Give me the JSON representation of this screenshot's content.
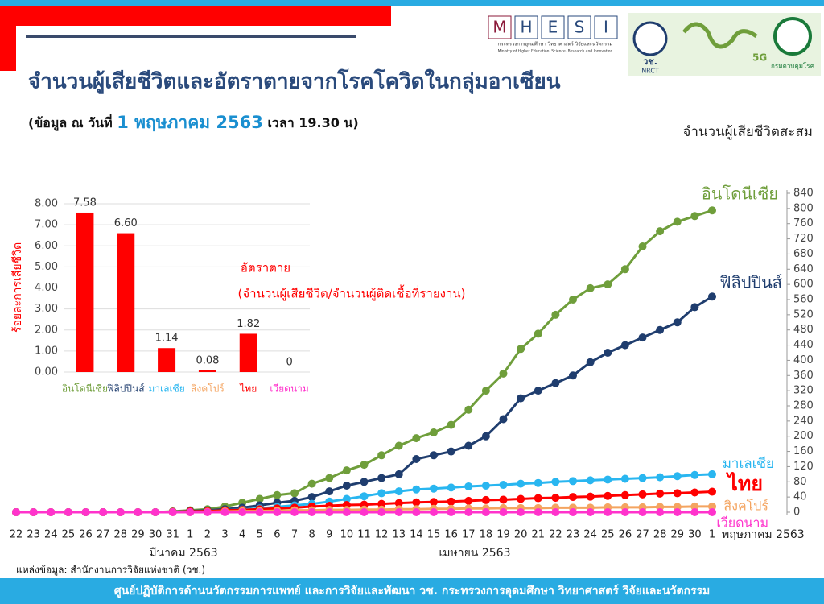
{
  "header": {
    "title": "จำนวนผู้เสียชีวิตและอัตราตายจากโรคโควิดในกลุ่มอาเซียน",
    "subtitle_prefix": "(ข้อมูล ณ วันที่",
    "subtitle_date": "1 พฤษภาคม 2563",
    "subtitle_suffix": "เวลา 19.30 น)"
  },
  "logos": {
    "mhesi_letters": [
      "M",
      "H",
      "E",
      "S",
      "I"
    ],
    "mhesi_th": "กระทรวงการอุดมศึกษา วิทยาศาสตร์ วิจัยและนวัตกรรม",
    "mhesi_en": "Ministry of Higher Education, Science, Research and Innovation",
    "nrct_th": "วช.",
    "nrct_en": "NRCT",
    "fiveg": "5G",
    "ddc": "กรมควบคุมโรค"
  },
  "chart_data": [
    {
      "type": "line",
      "y_label": "จำนวนผู้เสียชีวิตสะสม",
      "y_axis_position": "right",
      "categories": [
        "22",
        "23",
        "24",
        "25",
        "26",
        "27",
        "28",
        "29",
        "30",
        "31",
        "1",
        "2",
        "3",
        "4",
        "5",
        "6",
        "7",
        "8",
        "9",
        "10",
        "11",
        "12",
        "13",
        "14",
        "15",
        "16",
        "17",
        "18",
        "19",
        "20",
        "21",
        "22",
        "23",
        "24",
        "25",
        "26",
        "27",
        "28",
        "29",
        "30",
        "1"
      ],
      "x_group_labels": [
        "มีนาคม 2563",
        "เมษายน 2563",
        "พฤษภาคม 2563"
      ],
      "ylim": [
        0,
        840
      ],
      "yticks": [
        0,
        40,
        80,
        120,
        160,
        200,
        240,
        280,
        320,
        360,
        400,
        440,
        480,
        520,
        560,
        600,
        640,
        680,
        720,
        760,
        800,
        840
      ],
      "series": [
        {
          "name": "อินโดนีเซีย",
          "color": "#6f9e3b",
          "values": [
            0,
            0,
            0,
            0,
            0,
            0,
            0,
            0,
            0,
            2,
            5,
            8,
            15,
            25,
            35,
            45,
            50,
            75,
            90,
            110,
            125,
            150,
            175,
            195,
            210,
            230,
            270,
            320,
            365,
            430,
            470,
            520,
            560,
            590,
            600,
            640,
            700,
            740,
            765,
            780,
            795
          ]
        },
        {
          "name": "ฟิลิปปินส์",
          "color": "#1f3d6e",
          "values": [
            0,
            0,
            0,
            0,
            0,
            0,
            0,
            0,
            0,
            1,
            3,
            5,
            8,
            12,
            18,
            25,
            30,
            40,
            55,
            70,
            80,
            90,
            100,
            140,
            150,
            160,
            175,
            200,
            245,
            300,
            320,
            340,
            360,
            395,
            420,
            440,
            460,
            480,
            500,
            540,
            568
          ]
        },
        {
          "name": "มาเลเซีย",
          "color": "#29b6f0",
          "values": [
            0,
            0,
            0,
            0,
            0,
            0,
            0,
            0,
            0,
            1,
            2,
            3,
            5,
            7,
            10,
            14,
            18,
            22,
            28,
            35,
            42,
            50,
            55,
            60,
            62,
            65,
            68,
            70,
            72,
            75,
            77,
            80,
            82,
            84,
            86,
            88,
            90,
            92,
            95,
            98,
            100
          ]
        },
        {
          "name": "ไทย",
          "color": "#ff0000",
          "values": [
            0,
            0,
            0,
            0,
            0,
            0,
            0,
            0,
            0,
            1,
            2,
            3,
            5,
            6,
            8,
            10,
            12,
            15,
            17,
            19,
            20,
            22,
            24,
            26,
            27,
            28,
            30,
            32,
            33,
            35,
            37,
            38,
            40,
            41,
            43,
            45,
            47,
            49,
            50,
            52,
            54
          ]
        },
        {
          "name": "สิงคโปร์",
          "color": "#f4a460",
          "values": [
            0,
            0,
            0,
            0,
            0,
            0,
            0,
            0,
            0,
            0,
            0,
            1,
            2,
            3,
            3,
            4,
            5,
            5,
            6,
            6,
            7,
            7,
            8,
            8,
            9,
            9,
            10,
            10,
            11,
            11,
            11,
            12,
            12,
            12,
            13,
            13,
            13,
            14,
            14,
            15,
            15
          ]
        },
        {
          "name": "เวียดนาม",
          "color": "#ff33cc",
          "values": [
            0,
            0,
            0,
            0,
            0,
            0,
            0,
            0,
            0,
            0,
            0,
            0,
            0,
            0,
            0,
            0,
            0,
            0,
            0,
            0,
            0,
            0,
            0,
            0,
            0,
            0,
            0,
            0,
            0,
            0,
            0,
            0,
            0,
            0,
            0,
            0,
            0,
            0,
            0,
            0,
            0
          ]
        }
      ]
    },
    {
      "type": "bar",
      "y_label": "ร้อยละการเสียชีวิต",
      "annotations": [
        "อัตราตาย",
        "(จำนวนผู้เสียชีวิต/จำนวนผู้ติดเชื้อที่รายงาน)"
      ],
      "categories": [
        "อินโดนีเซีย",
        "ฟิลิปปินส์",
        "มาเลเซีย",
        "สิงคโปร์",
        "ไทย",
        "เวียดนาม"
      ],
      "category_colors": [
        "#6f9e3b",
        "#1f3d6e",
        "#29b6f0",
        "#f4a460",
        "#ff0000",
        "#ff33cc"
      ],
      "values": [
        7.58,
        6.6,
        1.14,
        0.08,
        1.82,
        0
      ],
      "value_labels": [
        "7.58",
        "6.60",
        "1.14",
        "0.08",
        "1.82",
        "0"
      ],
      "color": "#ff0000",
      "grid": true,
      "ylim": [
        0,
        8
      ],
      "yticks": [
        {
          "value": 0,
          "label": "0.00"
        },
        {
          "value": 1,
          "label": "1.00"
        },
        {
          "value": 2,
          "label": "2.00"
        },
        {
          "value": 3,
          "label": "3.00"
        },
        {
          "value": 4,
          "label": "4.00"
        },
        {
          "value": 5,
          "label": "5.00"
        },
        {
          "value": 6,
          "label": "6.00"
        },
        {
          "value": 7,
          "label": "7.00"
        },
        {
          "value": 8,
          "label": "8.00"
        }
      ]
    }
  ],
  "source": "แหล่งข้อมูล: สำนักงานการวิจัยแห่งชาติ (วช.)",
  "footer": "ศูนย์ปฏิบัติการด้านนวัตกรรมการแพทย์ และการวิจัยและพัฒนา  วช.   กระทรวงการอุดมศึกษา วิทยาศาสตร์ วิจัยและนวัตกรรม"
}
